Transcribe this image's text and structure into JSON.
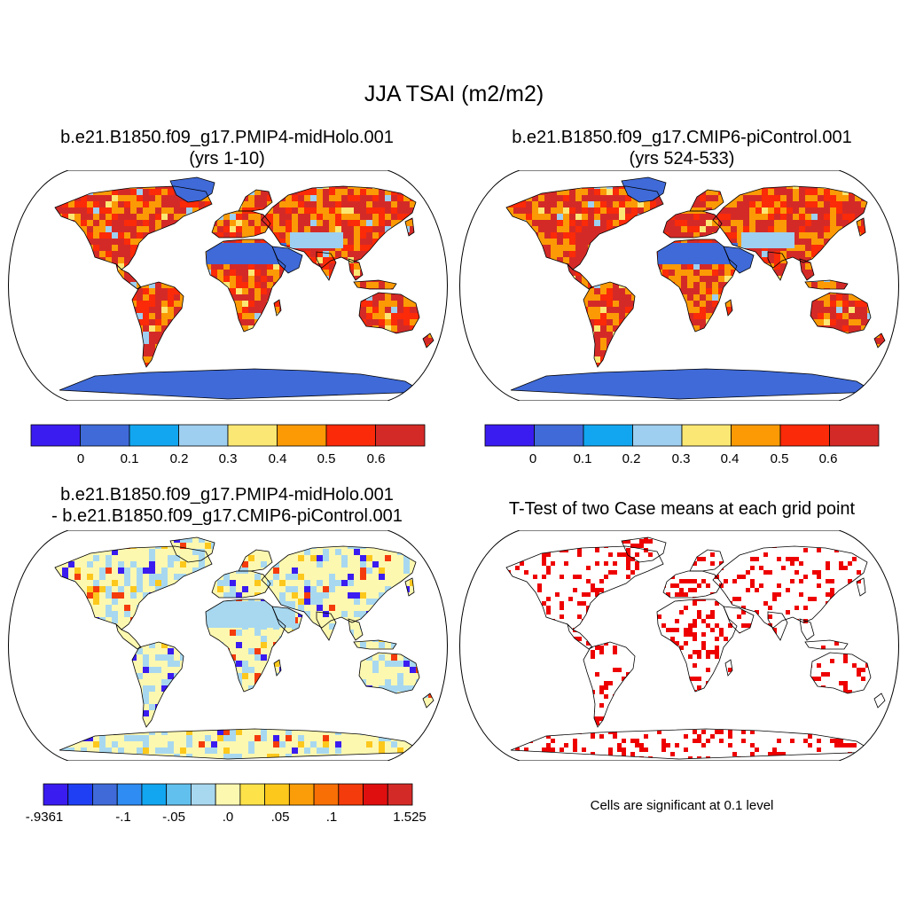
{
  "figure": {
    "title": "JJA TSAI (m2/m2)"
  },
  "panels": {
    "top_left": {
      "title_line1": "b.e21.B1850.f09_g17.PMIP4-midHolo.001",
      "title_line2": "(yrs 1-10)"
    },
    "top_right": {
      "title_line1": "b.e21.B1850.f09_g17.CMIP6-piControl.001",
      "title_line2": "(yrs 524-533)"
    },
    "bottom_left": {
      "title_line1": "b.e21.B1850.f09_g17.PMIP4-midHolo.001",
      "title_line2": "- b.e21.B1850.f09_g17.CMIP6-piControl.001"
    },
    "bottom_right": {
      "title_line1": "T-Test of two Case means at each grid point",
      "note": "Cells are significant at 0.1 level"
    }
  },
  "colorbars": {
    "absolute": {
      "colors": [
        "#3a1cf0",
        "#3f6ad8",
        "#12a6f0",
        "#9ecff0",
        "#fbe773",
        "#fb9a05",
        "#fb2a08",
        "#d42a27"
      ],
      "labels": [
        "0",
        "0.1",
        "0.2",
        "0.3",
        "0.4",
        "0.5",
        "0.6"
      ]
    },
    "difference": {
      "colors": [
        "#3a1cf0",
        "#1f3ff4",
        "#3f6ad8",
        "#2f8cf2",
        "#12a6f0",
        "#62c0ee",
        "#a8d8f0",
        "#fdf8b0",
        "#fde24a",
        "#fdc81c",
        "#fa9d08",
        "#f76f05",
        "#f43b0b",
        "#e00f0f",
        "#d42a27"
      ],
      "labels": [
        "-.9361",
        "-.1",
        "-.05",
        ".0",
        ".05",
        ".1",
        "1.525"
      ]
    }
  },
  "map_legend": {
    "land_colors": {
      "top_left": [
        "#d42a27",
        "#fb2a08",
        "#fb9a05",
        "#fbe773",
        "#9ecff0",
        "#3f6ad8"
      ],
      "top_right": [
        "#d42a27",
        "#fb2a08",
        "#fb9a05",
        "#fbe773",
        "#9ecff0",
        "#3f6ad8"
      ],
      "bottom_left": [
        "#fdf8b0",
        "#a8d8f0",
        "#3a1cf0",
        "#f43b0b",
        "#fdc81c"
      ],
      "bottom_right": [
        "#ee0000"
      ]
    }
  }
}
